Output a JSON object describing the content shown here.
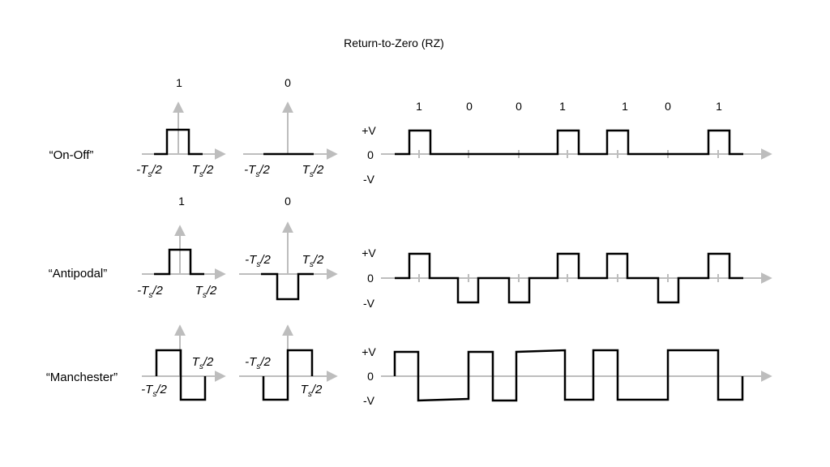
{
  "title": "Return-to-Zero (RZ)",
  "level_labels": {
    "plus": "+V",
    "zero": "0",
    "minus": "-V"
  },
  "tick_labels": {
    "neg": "-T",
    "pos": "T",
    "sub": "s",
    "tail": "/2"
  },
  "rows": [
    {
      "scheme": "“On-Off”",
      "pulse_bits": [
        "1",
        "0"
      ],
      "sequence_bits": [
        "1",
        "0",
        "0",
        "1",
        "1",
        "0",
        "1"
      ]
    },
    {
      "scheme": "“Antipodal”",
      "pulse_bits": [
        "1",
        "0"
      ]
    },
    {
      "scheme": "“Manchester”"
    }
  ],
  "bit_sequence": [
    1,
    0,
    0,
    1,
    1,
    0,
    1
  ],
  "colors": {
    "waveform": "#000000",
    "axis": "#bdbdbd"
  },
  "icons": [
    "arrow-head-icon"
  ]
}
